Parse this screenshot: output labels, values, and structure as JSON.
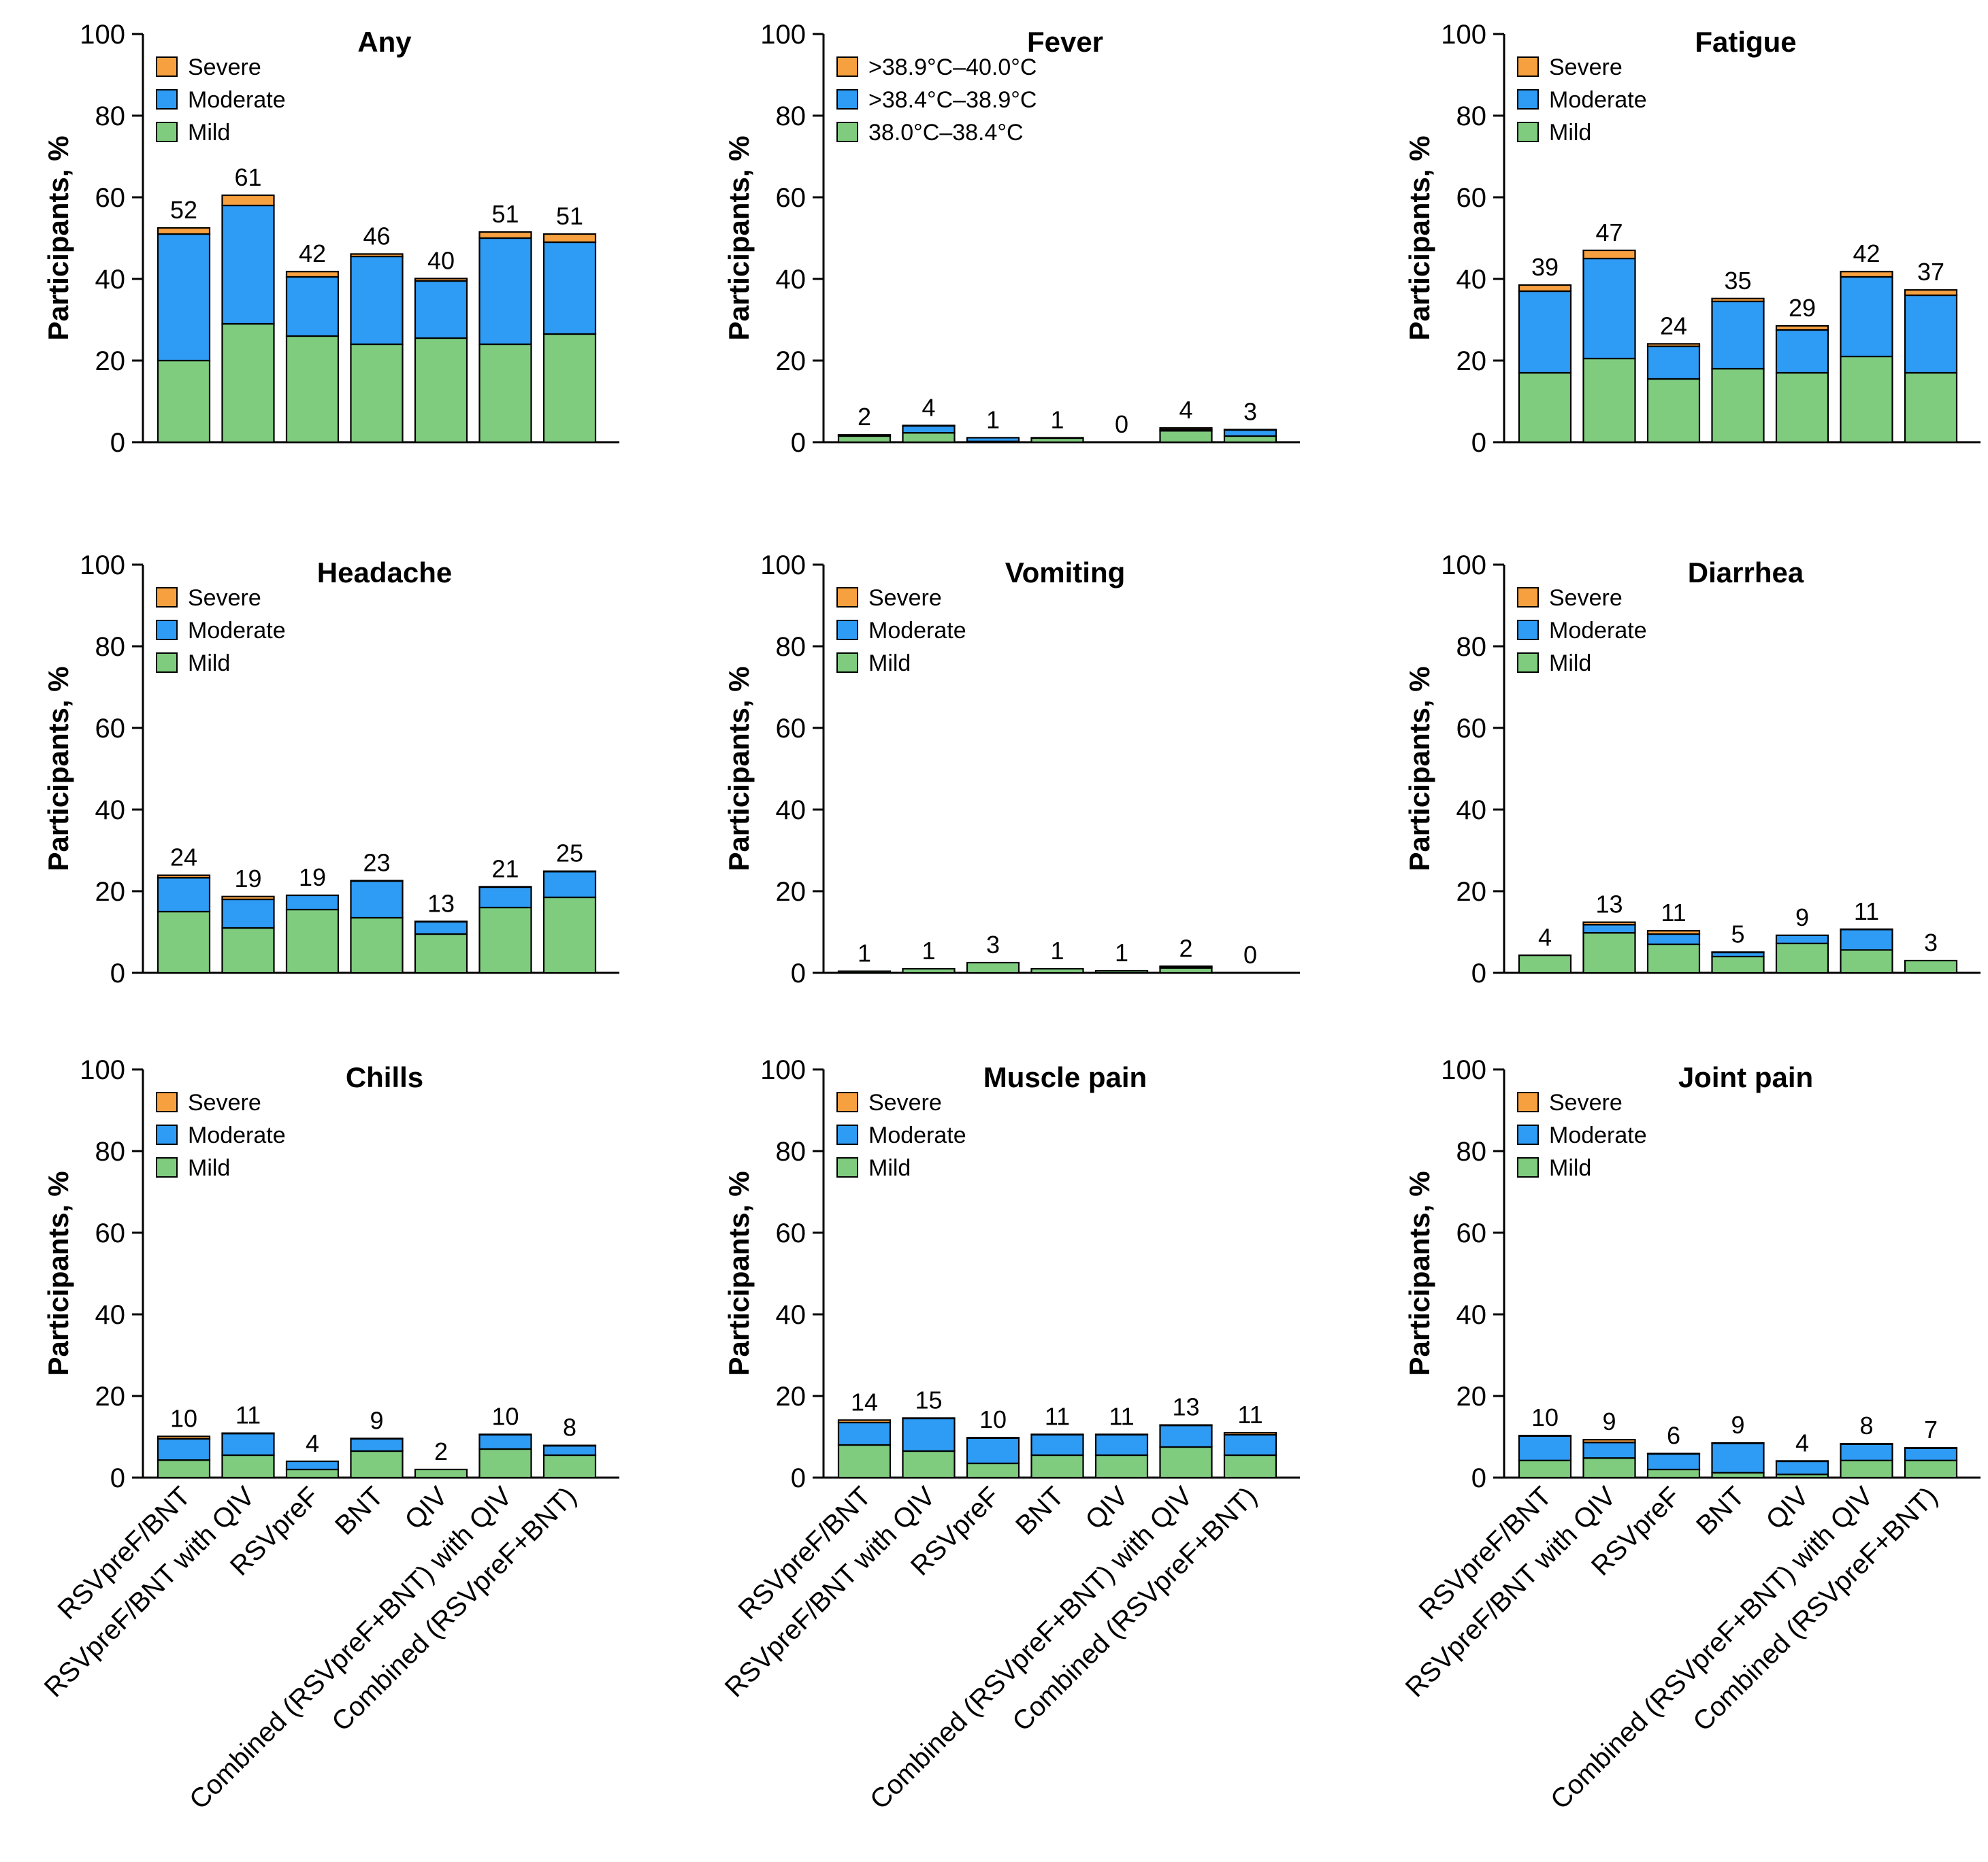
{
  "y_axis_label": "Participants, %",
  "colors": {
    "mild": "#7fcc7f",
    "moderate": "#2e9bf5",
    "severe": "#f7a040"
  },
  "chart_data": [
    {
      "type": "bar",
      "title": "Any",
      "ylabel": "Participants, %",
      "ylim": [
        0,
        100
      ],
      "yticks": [
        "0",
        "20",
        "40",
        "60",
        "80",
        "100"
      ],
      "categories": [
        "RSVpreF/BNT",
        "RSVpreF/BNT with QIV",
        "RSVpreF",
        "BNT",
        "QIV",
        "Combined (RSVpreF+BNT) with QIV",
        "Combined (RSVpreF+BNT)"
      ],
      "legend": [
        "Severe",
        "Moderate",
        "Mild"
      ],
      "series": [
        {
          "name": "Mild",
          "values": [
            20,
            29,
            26,
            24,
            25.5,
            24,
            26.5
          ]
        },
        {
          "name": "Moderate",
          "values": [
            31,
            29,
            14.5,
            21.5,
            14,
            26,
            22.5
          ]
        },
        {
          "name": "Severe",
          "values": [
            1.5,
            2.5,
            1.3,
            0.6,
            0.6,
            1.5,
            2
          ]
        }
      ],
      "totals": [
        "52",
        "61",
        "42",
        "46",
        "40",
        "51",
        "51"
      ]
    },
    {
      "type": "bar",
      "title": "Fever",
      "ylabel": "Participants, %",
      "ylim": [
        0,
        100
      ],
      "yticks": [
        "0",
        "20",
        "40",
        "60",
        "80",
        "100"
      ],
      "categories": [
        "RSVpreF/BNT",
        "RSVpreF/BNT with QIV",
        "RSVpreF",
        "BNT",
        "QIV",
        "Combined (RSVpreF+BNT) with QIV",
        "Combined (RSVpreF+BNT)"
      ],
      "legend": [
        ">38.9°C–40.0°C",
        ">38.4°C–38.9°C",
        "38.0°C–38.4°C"
      ],
      "series": [
        {
          "name": "38.0°C–38.4°C",
          "values": [
            1.5,
            2.3,
            0.2,
            1,
            0,
            2.8,
            1.5
          ]
        },
        {
          "name": ">38.4°C–38.9°C",
          "values": [
            0.2,
            1.7,
            0.9,
            0,
            0,
            0.3,
            1.5
          ]
        },
        {
          "name": ">38.9°C–40.0°C",
          "values": [
            0.1,
            0.1,
            0,
            0.1,
            0,
            0.4,
            0.1
          ]
        }
      ],
      "totals": [
        "2",
        "4",
        "1",
        "1",
        "0",
        "4",
        "3"
      ]
    },
    {
      "type": "bar",
      "title": "Fatigue",
      "ylabel": "Participants, %",
      "ylim": [
        0,
        100
      ],
      "yticks": [
        "0",
        "20",
        "40",
        "60",
        "80",
        "100"
      ],
      "categories": [
        "RSVpreF/BNT",
        "RSVpreF/BNT with QIV",
        "RSVpreF",
        "BNT",
        "QIV",
        "Combined (RSVpreF+BNT) with QIV",
        "Combined (RSVpreF+BNT)"
      ],
      "legend": [
        "Severe",
        "Moderate",
        "Mild"
      ],
      "series": [
        {
          "name": "Mild",
          "values": [
            17,
            20.5,
            15.5,
            18,
            17,
            21,
            17
          ]
        },
        {
          "name": "Moderate",
          "values": [
            20,
            24.5,
            8,
            16.5,
            10.5,
            19.5,
            19
          ]
        },
        {
          "name": "Severe",
          "values": [
            1.5,
            2,
            0.6,
            0.7,
            1,
            1.3,
            1.3
          ]
        }
      ],
      "totals": [
        "39",
        "47",
        "24",
        "35",
        "29",
        "42",
        "37"
      ]
    },
    {
      "type": "bar",
      "title": "Headache",
      "ylabel": "Participants, %",
      "ylim": [
        0,
        100
      ],
      "yticks": [
        "0",
        "20",
        "40",
        "60",
        "80",
        "100"
      ],
      "categories": [
        "RSVpreF/BNT",
        "RSVpreF/BNT with QIV",
        "RSVpreF",
        "BNT",
        "QIV",
        "Combined (RSVpreF+BNT) with QIV",
        "Combined (RSVpreF+BNT)"
      ],
      "legend": [
        "Severe",
        "Moderate",
        "Mild"
      ],
      "series": [
        {
          "name": "Mild",
          "values": [
            15,
            11,
            15.5,
            13.5,
            9.5,
            16,
            18.5
          ]
        },
        {
          "name": "Moderate",
          "values": [
            8.3,
            7,
            3.5,
            9,
            3,
            5,
            6.3
          ]
        },
        {
          "name": "Severe",
          "values": [
            0.6,
            0.7,
            0,
            0.1,
            0.1,
            0.1,
            0.1
          ]
        }
      ],
      "totals": [
        "24",
        "19",
        "19",
        "23",
        "13",
        "21",
        "25"
      ]
    },
    {
      "type": "bar",
      "title": "Vomiting",
      "ylabel": "Participants, %",
      "ylim": [
        0,
        100
      ],
      "yticks": [
        "0",
        "20",
        "40",
        "60",
        "80",
        "100"
      ],
      "categories": [
        "RSVpreF/BNT",
        "RSVpreF/BNT with QIV",
        "RSVpreF",
        "BNT",
        "QIV",
        "Combined (RSVpreF+BNT) with QIV",
        "Combined (RSVpreF+BNT)"
      ],
      "legend": [
        "Severe",
        "Moderate",
        "Mild"
      ],
      "series": [
        {
          "name": "Mild",
          "values": [
            0.4,
            1,
            2.5,
            1,
            0.5,
            1.2,
            0
          ]
        },
        {
          "name": "Moderate",
          "values": [
            0,
            0,
            0,
            0,
            0,
            0.3,
            0
          ]
        },
        {
          "name": "Severe",
          "values": [
            0,
            0,
            0,
            0,
            0,
            0.1,
            0
          ]
        }
      ],
      "totals": [
        "1",
        "1",
        "3",
        "1",
        "1",
        "2",
        "0"
      ]
    },
    {
      "type": "bar",
      "title": "Diarrhea",
      "ylabel": "Participants, %",
      "ylim": [
        0,
        100
      ],
      "yticks": [
        "0",
        "20",
        "40",
        "60",
        "80",
        "100"
      ],
      "categories": [
        "RSVpreF/BNT",
        "RSVpreF/BNT with QIV",
        "RSVpreF",
        "BNT",
        "QIV",
        "Combined (RSVpreF+BNT) with QIV",
        "Combined (RSVpreF+BNT)"
      ],
      "legend": [
        "Severe",
        "Moderate",
        "Mild"
      ],
      "series": [
        {
          "name": "Mild",
          "values": [
            4.3,
            9.8,
            7,
            4,
            7.2,
            5.6,
            3
          ]
        },
        {
          "name": "Moderate",
          "values": [
            0,
            2,
            2.5,
            1,
            2,
            5,
            0
          ]
        },
        {
          "name": "Severe",
          "values": [
            0,
            0.6,
            0.8,
            0.1,
            0,
            0.1,
            0
          ]
        }
      ],
      "totals": [
        "4",
        "13",
        "11",
        "5",
        "9",
        "11",
        "3"
      ]
    },
    {
      "type": "bar",
      "title": "Chills",
      "ylabel": "Participants, %",
      "ylim": [
        0,
        100
      ],
      "yticks": [
        "0",
        "20",
        "40",
        "60",
        "80",
        "100"
      ],
      "categories": [
        "RSVpreF/BNT",
        "RSVpreF/BNT with QIV",
        "RSVpreF",
        "BNT",
        "QIV",
        "Combined (RSVpreF+BNT) with QIV",
        "Combined (RSVpreF+BNT)"
      ],
      "legend": [
        "Severe",
        "Moderate",
        "Mild"
      ],
      "series": [
        {
          "name": "Mild",
          "values": [
            4.3,
            5.5,
            2,
            6.5,
            2,
            7,
            5.5
          ]
        },
        {
          "name": "Moderate",
          "values": [
            5.2,
            5.3,
            2,
            3,
            0,
            3.5,
            2.3
          ]
        },
        {
          "name": "Severe",
          "values": [
            0.6,
            0.1,
            0,
            0.1,
            0,
            0.1,
            0.1
          ]
        }
      ],
      "totals": [
        "10",
        "11",
        "4",
        "9",
        "2",
        "10",
        "8"
      ]
    },
    {
      "type": "bar",
      "title": "Muscle pain",
      "ylabel": "Participants, %",
      "ylim": [
        0,
        100
      ],
      "yticks": [
        "0",
        "20",
        "40",
        "60",
        "80",
        "100"
      ],
      "categories": [
        "RSVpreF/BNT",
        "RSVpreF/BNT with QIV",
        "RSVpreF",
        "BNT",
        "QIV",
        "Combined (RSVpreF+BNT) with QIV",
        "Combined (RSVpreF+BNT)"
      ],
      "legend": [
        "Severe",
        "Moderate",
        "Mild"
      ],
      "series": [
        {
          "name": "Mild",
          "values": [
            8,
            6.5,
            3.5,
            5.5,
            5.5,
            7.5,
            5.5
          ]
        },
        {
          "name": "Moderate",
          "values": [
            5.5,
            8,
            6.2,
            5,
            5,
            5.3,
            5
          ]
        },
        {
          "name": "Severe",
          "values": [
            0.6,
            0.1,
            0.1,
            0.1,
            0.1,
            0.1,
            0.5
          ]
        }
      ],
      "totals": [
        "14",
        "15",
        "10",
        "11",
        "11",
        "13",
        "11"
      ]
    },
    {
      "type": "bar",
      "title": "Joint pain",
      "ylabel": "Participants, %",
      "ylim": [
        0,
        100
      ],
      "yticks": [
        "0",
        "20",
        "40",
        "60",
        "80",
        "100"
      ],
      "categories": [
        "RSVpreF/BNT",
        "RSVpreF/BNT with QIV",
        "RSVpreF",
        "BNT",
        "QIV",
        "Combined (RSVpreF+BNT) with QIV",
        "Combined (RSVpreF+BNT)"
      ],
      "legend": [
        "Severe",
        "Moderate",
        "Mild"
      ],
      "series": [
        {
          "name": "Mild",
          "values": [
            4.2,
            4.8,
            2,
            1.2,
            0.8,
            4.2,
            4.2
          ]
        },
        {
          "name": "Moderate",
          "values": [
            6,
            3.8,
            3.8,
            7.2,
            3.2,
            4,
            3
          ]
        },
        {
          "name": "Severe",
          "values": [
            0.1,
            0.7,
            0.1,
            0.1,
            0.1,
            0.1,
            0.1
          ]
        }
      ],
      "totals": [
        "10",
        "9",
        "6",
        "9",
        "4",
        "8",
        "7"
      ]
    }
  ]
}
